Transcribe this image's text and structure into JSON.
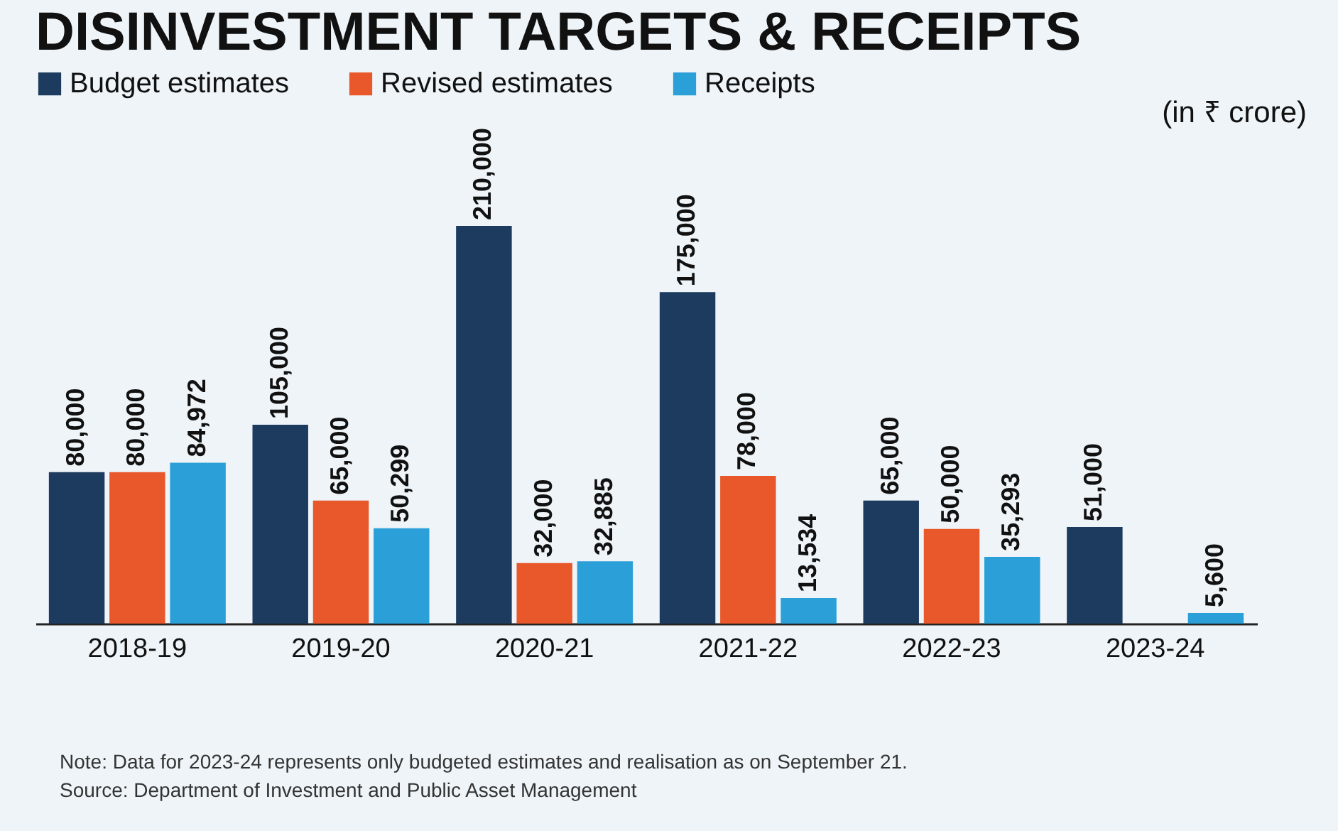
{
  "chart_data": {
    "type": "bar",
    "title": "DISINVESTMENT TARGETS & RECEIPTS",
    "subtitle": "(in ₹ crore)",
    "categories": [
      "2018-19",
      "2019-20",
      "2020-21",
      "2021-22",
      "2022-23",
      "2023-24"
    ],
    "series": [
      {
        "name": "Budget estimates",
        "color": "#1c3b5e",
        "values": [
          80000,
          105000,
          210000,
          175000,
          65000,
          51000
        ],
        "value_labels": [
          "80,000",
          "105,000",
          "210,000",
          "175,000",
          "65,000",
          "51,000"
        ]
      },
      {
        "name": "Revised estimates",
        "color": "#e8582b",
        "values": [
          80000,
          65000,
          32000,
          78000,
          50000,
          null
        ],
        "value_labels": [
          "80,000",
          "65,000",
          "32,000",
          "78,000",
          "50,000",
          null
        ]
      },
      {
        "name": "Receipts",
        "color": "#2b9fd8",
        "values": [
          84972,
          50299,
          32885,
          13534,
          35293,
          5600
        ],
        "value_labels": [
          "84,972",
          "50,299",
          "32,885",
          "13,534",
          "35,293",
          "5,600"
        ]
      }
    ],
    "legend": "top left",
    "tick_labels": "x",
    "annotations": [
      "Note: Data for 2023-24 represents only budgeted estimates and realisation as on September 21.",
      "Source: Department of Investment and Public Asset Management"
    ]
  }
}
